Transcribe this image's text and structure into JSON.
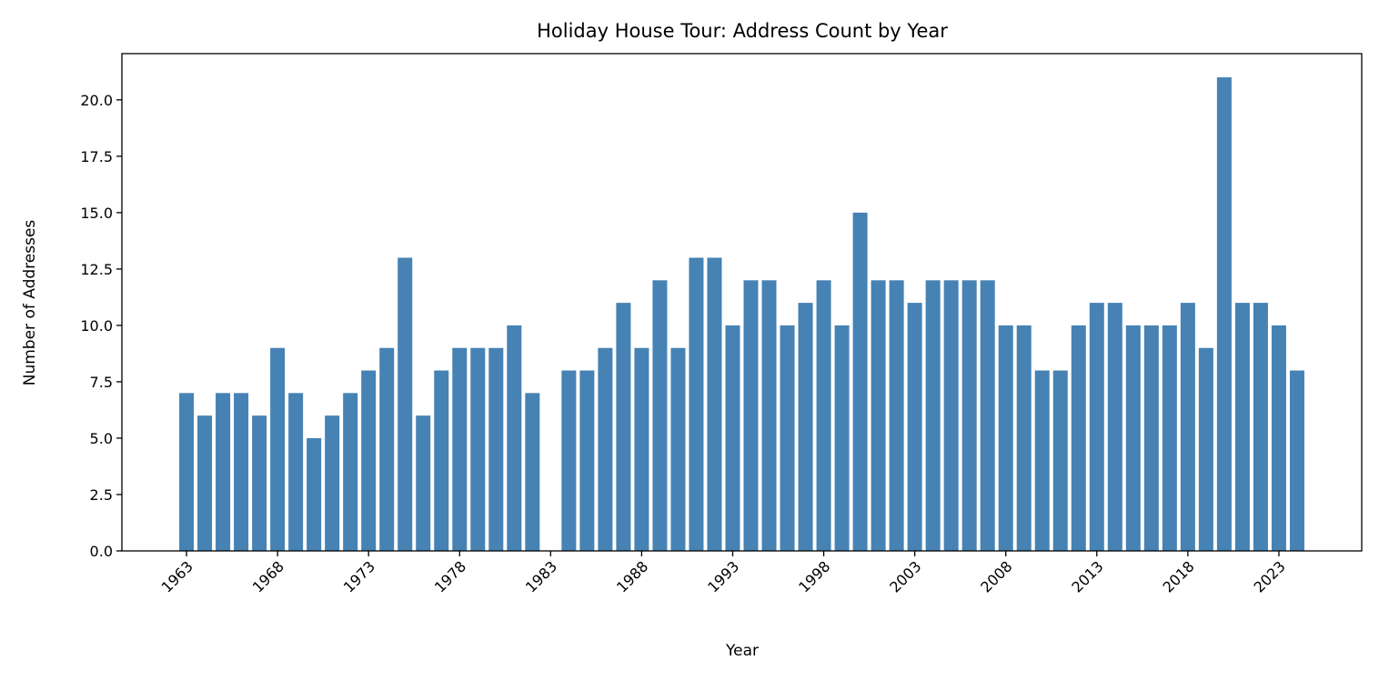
{
  "chart_data": {
    "type": "bar",
    "title": "Holiday House Tour: Address Count by Year",
    "xlabel": "Year",
    "ylabel": "Number of Addresses",
    "x": [
      1963,
      1964,
      1965,
      1966,
      1967,
      1968,
      1969,
      1970,
      1971,
      1972,
      1973,
      1974,
      1975,
      1976,
      1977,
      1978,
      1979,
      1980,
      1981,
      1982,
      1984,
      1985,
      1986,
      1987,
      1988,
      1989,
      1990,
      1991,
      1992,
      1993,
      1994,
      1995,
      1996,
      1997,
      1998,
      1999,
      2000,
      2001,
      2002,
      2003,
      2004,
      2005,
      2006,
      2007,
      2008,
      2009,
      2010,
      2011,
      2012,
      2013,
      2014,
      2015,
      2016,
      2017,
      2018,
      2019,
      2020,
      2021,
      2022,
      2023,
      2024
    ],
    "values": [
      7,
      6,
      7,
      7,
      6,
      9,
      7,
      5,
      6,
      7,
      8,
      9,
      13,
      6,
      8,
      9,
      9,
      9,
      10,
      7,
      8,
      8,
      9,
      11,
      9,
      12,
      9,
      13,
      13,
      10,
      12,
      12,
      10,
      11,
      12,
      10,
      15,
      12,
      12,
      11,
      12,
      12,
      12,
      12,
      10,
      10,
      8,
      8,
      10,
      11,
      11,
      10,
      10,
      10,
      11,
      9,
      21,
      11,
      11,
      10,
      8
    ],
    "xticks": [
      "1963",
      "1968",
      "1973",
      "1978",
      "1983",
      "1988",
      "1993",
      "1998",
      "2003",
      "2008",
      "2013",
      "2018",
      "2023"
    ],
    "yticks": [
      "0.0",
      "2.5",
      "5.0",
      "7.5",
      "10.0",
      "12.5",
      "15.0",
      "17.5",
      "20.0"
    ],
    "xlim": [
      1959.45,
      2027.55
    ],
    "ylim": [
      0,
      22.05
    ],
    "bar_color": "#4682b4",
    "grid": false,
    "legend": "none"
  }
}
